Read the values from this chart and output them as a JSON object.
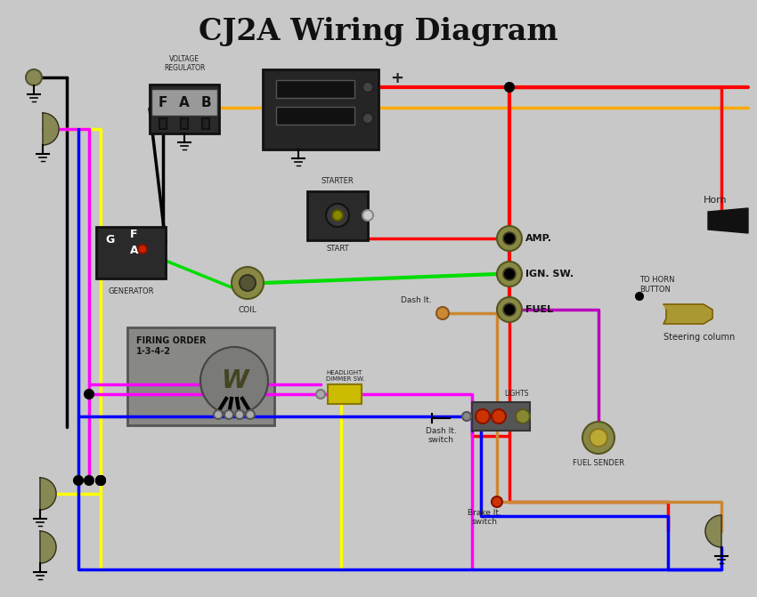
{
  "title": "CJ2A Wiring Diagram",
  "title_fontsize": 24,
  "bg": "#c8c8c8",
  "red": "#ff0000",
  "black": "#000000",
  "yellow": "#ffff00",
  "green": "#00dd00",
  "blue": "#0000ff",
  "magenta": "#ff00ff",
  "orange": "#ffaa00",
  "purple": "#bb00bb",
  "brown": "#cc8833",
  "dark_olive": "#888855",
  "wire_lw": 2.5,
  "labels": {
    "title": "CJ2A Wiring Diagram",
    "voltage_reg": "VOLTAGE\nREGULATOR",
    "generator": "GENERATOR",
    "coil": "COIL",
    "firing_order": "FIRING ORDER\n1-3-4-2",
    "starter": "STARTER",
    "start": "START",
    "amp": "AMP.",
    "ign_sw": "IGN. SW.",
    "fuel": "FUEL",
    "dash_lt": "Dash lt.",
    "headlight_dimmer": "HEADLIGHT\nDIMMER SW.",
    "lights": "LIGHTS",
    "dash_lt_switch": "Dash lt.\nswitch",
    "fuel_sender": "FUEL SENDER",
    "horn": "Horn",
    "to_horn_button": "TO HORN\nBUTTON",
    "steering_column": "Steering column",
    "brake_lt_switch": "Brake lt.\nswitch"
  }
}
